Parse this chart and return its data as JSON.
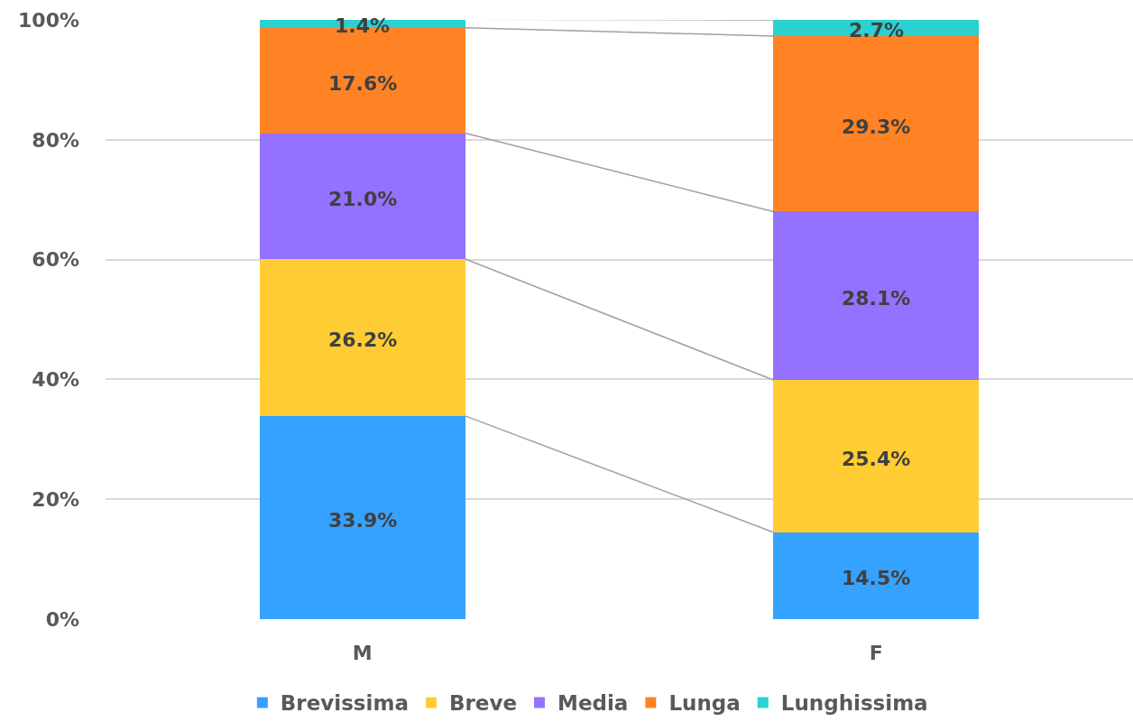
{
  "chart_data": {
    "type": "bar",
    "stacked": true,
    "categories": [
      "M",
      "F"
    ],
    "series": [
      {
        "name": "Brevissima",
        "color": "#36a2ff",
        "values": [
          33.9,
          14.5
        ],
        "value_labels": [
          "33.9%",
          "14.5%"
        ]
      },
      {
        "name": "Breve",
        "color": "#ffcc33",
        "values": [
          26.2,
          25.4
        ],
        "value_labels": [
          "26.2%",
          "25.4%"
        ]
      },
      {
        "name": "Media",
        "color": "#9471ff",
        "values": [
          21.0,
          28.1
        ],
        "value_labels": [
          "21.0%",
          "28.1%"
        ]
      },
      {
        "name": "Lunga",
        "color": "#ff8325",
        "values": [
          17.6,
          29.3
        ],
        "value_labels": [
          "17.6%",
          "29.3%"
        ]
      },
      {
        "name": "Lunghissima",
        "color": "#2bd1d1",
        "values": [
          1.4,
          2.7
        ],
        "value_labels": [
          "1.4%",
          "2.7%"
        ]
      }
    ],
    "ylim": [
      0,
      100
    ],
    "yticks": [
      {
        "value": 0,
        "label": "0%"
      },
      {
        "value": 20,
        "label": "20%"
      },
      {
        "value": 40,
        "label": "40%"
      },
      {
        "value": 60,
        "label": "60%"
      },
      {
        "value": 80,
        "label": "80%"
      },
      {
        "value": 100,
        "label": "100%"
      }
    ],
    "grid": "y",
    "legend": "bottom"
  }
}
